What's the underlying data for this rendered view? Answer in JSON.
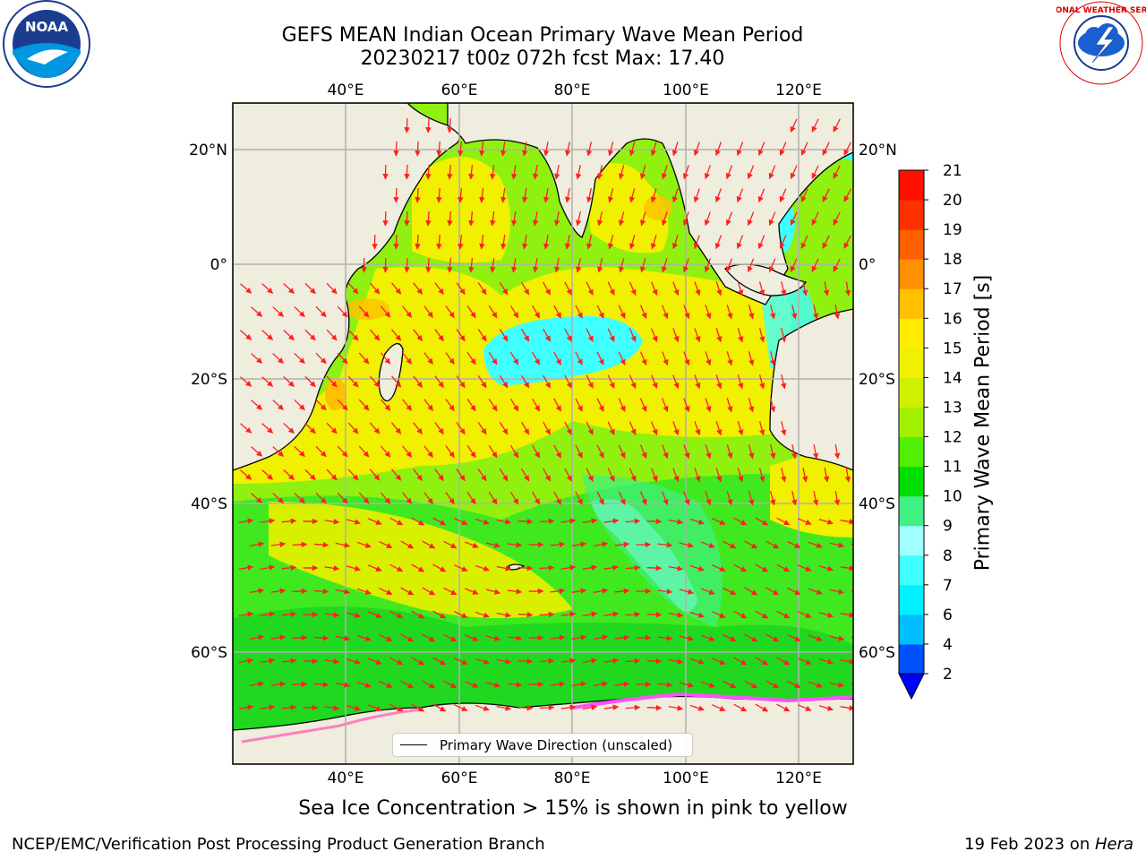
{
  "title": {
    "line1": "GEFS MEAN Indian Ocean Primary Wave Mean Period",
    "line2": "20230217 t00z 072h fcst   Max: 17.40"
  },
  "axes": {
    "lon_ticks": [
      "40°E",
      "60°E",
      "80°E",
      "100°E",
      "120°E"
    ],
    "lat_ticks": [
      "20°N",
      "0°",
      "20°S",
      "40°S",
      "60°S"
    ]
  },
  "colorbar": {
    "label": "Primary Wave Mean Period [s]",
    "ticks": [
      "2",
      "4",
      "6",
      "7",
      "8",
      "9",
      "10",
      "11",
      "12",
      "13",
      "14",
      "15",
      "16",
      "17",
      "18",
      "19",
      "20",
      "21"
    ],
    "colors": [
      "#0050ff",
      "#00bfff",
      "#00f0ff",
      "#40ffff",
      "#a0ffff",
      "#40f080",
      "#00e000",
      "#50f000",
      "#a0f000",
      "#d0f000",
      "#f0f000",
      "#ffec00",
      "#ffc000",
      "#ff9000",
      "#ff6000",
      "#ff3000",
      "#ff1000"
    ],
    "under_color": "#0000ff"
  },
  "legend": {
    "label": "Primary Wave Direction (unscaled)"
  },
  "note": "Sea Ice Concentration > 15% is shown in pink to yellow",
  "footer": {
    "left": "NCEP/EMC/Verification Post Processing Product Generation Branch",
    "date": "19 Feb 2023 on ",
    "machine": "Hera"
  },
  "logos": {
    "left_text": "NOAA",
    "right_text": "NATIONAL WEATHER SERVICE"
  }
}
